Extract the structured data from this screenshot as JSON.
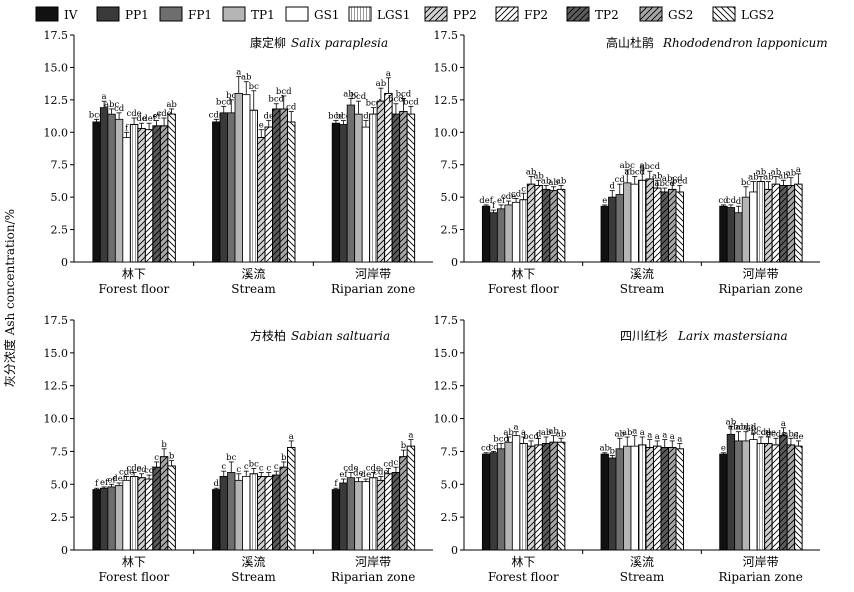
{
  "legend": [
    {
      "name": "IV",
      "color": "#111111",
      "hatch": "none"
    },
    {
      "name": "PP1",
      "color": "#3a3a3a",
      "hatch": "none"
    },
    {
      "name": "FP1",
      "color": "#6e6e6e",
      "hatch": "none"
    },
    {
      "name": "TP1",
      "color": "#b5b5b5",
      "hatch": "none"
    },
    {
      "name": "GS1",
      "color": "#ffffff",
      "hatch": "none"
    },
    {
      "name": "LGS1",
      "color": "#ffffff",
      "hatch": "dense"
    },
    {
      "name": "PP2",
      "color": "#d2d2d2",
      "hatch": "fwd"
    },
    {
      "name": "FP2",
      "color": "#ffffff",
      "hatch": "fwd"
    },
    {
      "name": "TP2",
      "color": "#5c5c5c",
      "hatch": "fwd"
    },
    {
      "name": "GS2",
      "color": "#a6a6a6",
      "hatch": "fwd"
    },
    {
      "name": "LGS2",
      "color": "#ffffff",
      "hatch": "back"
    }
  ],
  "y_axis_label": "灰分浓度 Ash concentration/%",
  "chart_data": [
    {
      "type": "bar",
      "title_cn": "康定柳",
      "title_en": "Salix paraplesia",
      "categories": [
        {
          "cn": "林下",
          "en": "Forest floor"
        },
        {
          "cn": "溪流",
          "en": "Stream"
        },
        {
          "cn": "河岸带",
          "en": "Riparian zone"
        }
      ],
      "ylim": [
        0,
        17.5
      ],
      "yticks": [
        "0",
        "2.5",
        "5.0",
        "7.5",
        "10.0",
        "12.5",
        "15.0",
        "17.5"
      ],
      "values": [
        [
          10.8,
          11.9,
          11.4,
          11.0,
          9.6,
          10.6,
          10.3,
          10.2,
          10.5,
          10.5,
          11.4
        ],
        [
          10.8,
          11.5,
          11.5,
          13.0,
          12.9,
          11.7,
          9.6,
          10.4,
          11.8,
          11.8,
          10.8
        ],
        [
          10.7,
          10.6,
          12.1,
          11.4,
          10.4,
          11.4,
          12.4,
          13.0,
          11.4,
          11.6,
          11.4
        ]
      ],
      "errors": [
        [
          0.2,
          0.5,
          0.4,
          0.5,
          0.4,
          0.5,
          0.4,
          0.5,
          0.4,
          0.6,
          0.4
        ],
        [
          0.2,
          0.5,
          1.0,
          1.3,
          1.0,
          1.5,
          0.6,
          0.5,
          0.4,
          1.0,
          0.8
        ],
        [
          0.2,
          0.3,
          0.5,
          1.0,
          0.5,
          0.5,
          1.0,
          1.2,
          0.8,
          1.0,
          0.6
        ]
      ],
      "labels": [
        [
          "bcd",
          "a",
          "abc",
          "cd",
          "f",
          "cde",
          "de",
          "def",
          "ef",
          "cde",
          "ab"
        ],
        [
          "cde",
          "bcd",
          "bc",
          "a",
          "ab",
          "bc",
          "e",
          "de",
          "bcd",
          "bcd",
          "cd"
        ],
        [
          "bcd",
          "bcd",
          "abc",
          "bcd",
          "d",
          "bcd",
          "ab",
          "a",
          "bcd",
          "bcd",
          "bcd"
        ]
      ]
    },
    {
      "type": "bar",
      "title_cn": "高山杜鹃",
      "title_en": "Rhododendron lapponicum",
      "categories": [
        {
          "cn": "林下",
          "en": "Forest floor"
        },
        {
          "cn": "溪流",
          "en": "Stream"
        },
        {
          "cn": "河岸带",
          "en": "Riparian zone"
        }
      ],
      "ylim": [
        0,
        17.5
      ],
      "yticks": [
        "0",
        "2.5",
        "5.0",
        "7.5",
        "10.0",
        "12.5",
        "15.0",
        "17.5"
      ],
      "values": [
        [
          4.3,
          3.8,
          4.1,
          4.4,
          4.6,
          4.8,
          6.0,
          5.9,
          5.6,
          5.5,
          5.6
        ],
        [
          4.3,
          5.0,
          5.2,
          6.1,
          6.0,
          6.3,
          6.4,
          5.7,
          5.4,
          5.6,
          5.4
        ],
        [
          4.3,
          4.2,
          3.8,
          5.0,
          5.4,
          6.2,
          5.6,
          6.0,
          5.9,
          5.9,
          6.0
        ]
      ],
      "errors": [
        [
          0.1,
          0.2,
          0.3,
          0.3,
          0.3,
          0.5,
          0.6,
          0.4,
          0.3,
          0.3,
          0.3
        ],
        [
          0.1,
          0.5,
          0.8,
          1.0,
          0.6,
          0.8,
          0.6,
          0.6,
          0.3,
          0.5,
          0.5
        ],
        [
          0.1,
          0.2,
          0.5,
          0.8,
          0.8,
          0.4,
          0.6,
          0.6,
          0.4,
          0.6,
          0.8
        ]
      ],
      "labels": [
        [
          "def",
          "f",
          "ef",
          "cde",
          "cd",
          "c",
          "ab",
          "ab",
          "ab",
          "ab",
          "ab"
        ],
        [
          "e",
          "d",
          "cd",
          "abc",
          "abcd",
          "a",
          "abcd",
          "ab",
          "abcd",
          "abcd",
          "bcd"
        ],
        [
          "cd",
          "cd",
          "d",
          "bc",
          "ab",
          "ab",
          "ab",
          "ab",
          "ab",
          "ab",
          "a"
        ]
      ]
    },
    {
      "type": "bar",
      "title_cn": "方枝柏",
      "title_en": "Sabian saltuaria",
      "categories": [
        {
          "cn": "林下",
          "en": "Forest floor"
        },
        {
          "cn": "溪流",
          "en": "Stream"
        },
        {
          "cn": "河岸带",
          "en": "Riparian zone"
        }
      ],
      "ylim": [
        0,
        17.5
      ],
      "yticks": [
        "0",
        "2.5",
        "5.0",
        "7.5",
        "10.0",
        "12.5",
        "15.0",
        "17.5"
      ],
      "values": [
        [
          4.6,
          4.7,
          4.8,
          4.9,
          5.3,
          5.6,
          5.5,
          5.4,
          6.3,
          7.1,
          6.4
        ],
        [
          4.6,
          5.6,
          5.9,
          5.3,
          5.6,
          5.8,
          5.6,
          5.6,
          5.7,
          6.3,
          7.8
        ],
        [
          4.6,
          5.1,
          5.5,
          5.2,
          5.2,
          5.5,
          5.3,
          5.8,
          5.9,
          7.1,
          7.9
        ]
      ],
      "errors": [
        [
          0.1,
          0.1,
          0.2,
          0.2,
          0.3,
          0.3,
          0.3,
          0.3,
          0.4,
          0.6,
          0.4
        ],
        [
          0.1,
          0.4,
          0.8,
          0.5,
          0.4,
          0.4,
          0.3,
          0.3,
          0.3,
          0.4,
          0.5
        ],
        [
          0.1,
          0.3,
          0.4,
          0.3,
          0.2,
          0.4,
          0.3,
          0.4,
          0.4,
          0.5,
          0.5
        ]
      ],
      "labels": [
        [
          "f",
          "ef",
          "ef",
          "def",
          "cde",
          "cde",
          "cd",
          "cd",
          "c",
          "b",
          "b"
        ],
        [
          "d",
          "c",
          "bc",
          "c",
          "c",
          "bc",
          "c",
          "c",
          "c",
          "b",
          "a"
        ],
        [
          "f",
          "ef",
          "cde",
          "de",
          "de",
          "cde",
          "cde",
          "cd",
          "c",
          "b",
          "a"
        ]
      ]
    },
    {
      "type": "bar",
      "title_cn": "四川红杉",
      "title_en": "Larix mastersiana",
      "categories": [
        {
          "cn": "林下",
          "en": "Forest floor"
        },
        {
          "cn": "溪流",
          "en": "Stream"
        },
        {
          "cn": "河岸带",
          "en": "Riparian zone"
        }
      ],
      "ylim": [
        0,
        17.5
      ],
      "yticks": [
        "0",
        "2.5",
        "5.0",
        "7.5",
        "10.0",
        "12.5",
        "15.0",
        "17.5"
      ],
      "values": [
        [
          7.3,
          7.4,
          7.7,
          8.2,
          8.7,
          8.1,
          7.9,
          8.0,
          8.1,
          8.2,
          8.2
        ],
        [
          7.3,
          7.0,
          7.7,
          7.9,
          7.9,
          8.0,
          7.8,
          7.9,
          7.8,
          7.8,
          7.7
        ],
        [
          7.3,
          8.8,
          8.3,
          8.3,
          8.4,
          8.1,
          8.1,
          8.0,
          8.7,
          8.0,
          7.9
        ]
      ],
      "errors": [
        [
          0.1,
          0.1,
          0.4,
          0.4,
          0.3,
          0.5,
          0.4,
          0.5,
          0.5,
          0.5,
          0.3
        ],
        [
          0.1,
          0.2,
          0.8,
          0.7,
          0.8,
          0.6,
          0.6,
          0.4,
          0.6,
          0.5,
          0.4
        ],
        [
          0.1,
          0.6,
          0.7,
          0.7,
          0.5,
          0.5,
          0.5,
          0.5,
          0.6,
          0.5,
          0.4
        ]
      ],
      "labels": [
        [
          "cd",
          "cd",
          "bcd",
          "ab",
          "a",
          "a",
          "bcd",
          "d",
          "ab",
          "ab",
          "ab"
        ],
        [
          "ab",
          "b",
          "ab",
          "ab",
          "a",
          "a",
          "a",
          "a",
          "a",
          "a",
          "a"
        ],
        [
          "e",
          "ab",
          "abcd",
          "abcd",
          "abc",
          "bcde",
          "cde",
          "bcde",
          "a",
          "abc",
          "de"
        ]
      ]
    }
  ]
}
